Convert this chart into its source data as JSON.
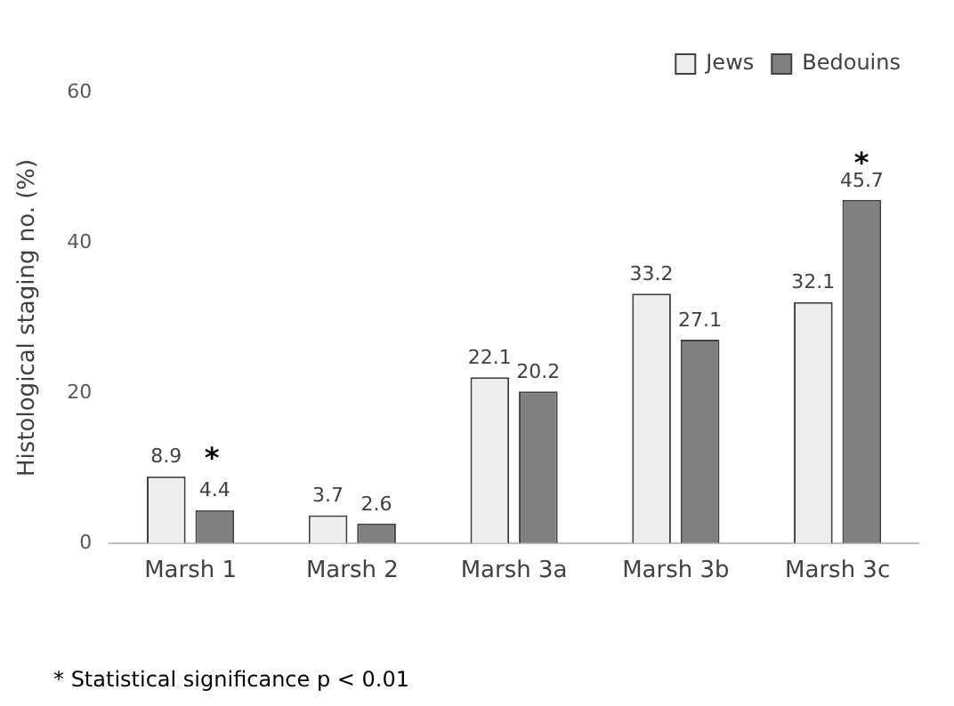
{
  "chart_data": {
    "type": "bar",
    "ylabel": "Histological staging no. (%)",
    "categories": [
      "Marsh 1",
      "Marsh 2",
      "Marsh 3a",
      "Marsh 3b",
      "Marsh 3c"
    ],
    "series": [
      {
        "name": "Jews",
        "color": "#eeeeee",
        "values": [
          8.9,
          3.7,
          22.1,
          33.2,
          32.1
        ]
      },
      {
        "name": "Bedouins",
        "color": "#808080",
        "values": [
          4.4,
          2.6,
          20.2,
          27.1,
          45.7
        ]
      }
    ],
    "ylim": [
      0,
      60
    ],
    "yticks": [
      0,
      20,
      40,
      60
    ],
    "grid": false,
    "legend": "top right",
    "data_labels": true,
    "annotations": [
      "*",
      "*",
      "* Statistical significance p < 0.01"
    ]
  }
}
